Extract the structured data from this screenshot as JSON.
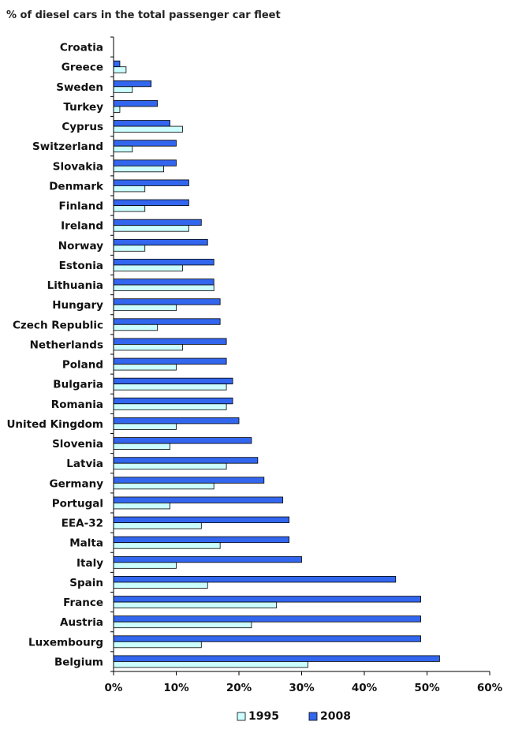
{
  "chart_data": {
    "type": "bar",
    "orientation": "horizontal",
    "title": "% of diesel cars in the total passenger car fleet",
    "categories": [
      "Croatia",
      "Greece",
      "Sweden",
      "Turkey",
      "Cyprus",
      "Switzerland",
      "Slovakia",
      "Denmark",
      "Finland",
      "Ireland",
      "Norway",
      "Estonia",
      "Lithuania",
      "Hungary",
      "Czech Republic",
      "Netherlands",
      "Poland",
      "Bulgaria",
      "Romania",
      "United Kingdom",
      "Slovenia",
      "Latvia",
      "Germany",
      "Portugal",
      "EEA-32",
      "Malta",
      "Italy",
      "Spain",
      "France",
      "Austria",
      "Luxembourg",
      "Belgium"
    ],
    "series": [
      {
        "name": "1995",
        "color": "#ccffff",
        "values": [
          0,
          2,
          3,
          1,
          11,
          3,
          8,
          5,
          5,
          12,
          5,
          11,
          16,
          10,
          7,
          11,
          10,
          18,
          18,
          10,
          9,
          18,
          16,
          9,
          14,
          17,
          10,
          15,
          26,
          22,
          14,
          31
        ]
      },
      {
        "name": "2008",
        "color": "#3366ee",
        "values": [
          0,
          1,
          6,
          7,
          9,
          10,
          10,
          12,
          12,
          14,
          15,
          16,
          16,
          17,
          17,
          18,
          18,
          19,
          19,
          20,
          22,
          23,
          24,
          27,
          28,
          28,
          30,
          45,
          49,
          49,
          49,
          52
        ]
      }
    ],
    "xlim": [
      0,
      60
    ],
    "xticks": [
      0,
      10,
      20,
      30,
      40,
      50,
      60
    ],
    "xtick_labels": [
      "0%",
      "10%",
      "20%",
      "30%",
      "40%",
      "50%",
      "60%"
    ],
    "grid": false,
    "legend_position": "bottom-center"
  }
}
